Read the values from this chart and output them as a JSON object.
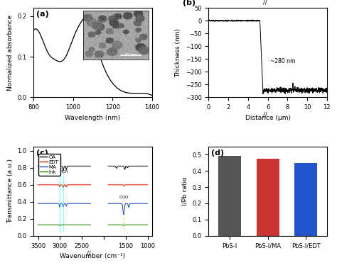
{
  "panel_a": {
    "xlabel": "Wavelength (nm)",
    "ylabel": "Normalized absorbance",
    "xlim": [
      800,
      1400
    ],
    "ylim": [
      0,
      0.22
    ],
    "yticks": [
      0.0,
      0.1,
      0.2
    ],
    "xticks": [
      800,
      1000,
      1200,
      1400
    ],
    "label": "(a)"
  },
  "panel_b": {
    "xlabel": "Distance (μm)",
    "ylabel": "Thickness (nm)",
    "xlim": [
      0,
      12
    ],
    "ylim": [
      -300,
      50
    ],
    "yticks": [
      -300,
      -250,
      -200,
      -150,
      -100,
      -50,
      0,
      50
    ],
    "xticks": [
      0,
      2,
      4,
      6,
      8,
      10,
      12
    ],
    "annotation": "~280 nm",
    "label": "(b)"
  },
  "panel_c": {
    "xlabel": "Wavenumber (cm⁻¹)",
    "ylabel": "Transmittance (a.u.)",
    "label": "(c)",
    "legend": [
      "OA",
      "EDT",
      "MA",
      "Ink"
    ],
    "legend_colors": [
      "#111111",
      "#cc2200",
      "#1a4fbf",
      "#228800"
    ]
  },
  "panel_d": {
    "ylabel": "I/Pb ratio",
    "ylim": [
      0,
      0.55
    ],
    "yticks": [
      0.0,
      0.1,
      0.2,
      0.3,
      0.4,
      0.5
    ],
    "categories": [
      "PbS-I",
      "PbS-I/MA",
      "PbS-I/EDT"
    ],
    "values": [
      0.49,
      0.475,
      0.45
    ],
    "bar_colors": [
      "#555555",
      "#cc3333",
      "#2255cc"
    ],
    "label": "(d)"
  }
}
